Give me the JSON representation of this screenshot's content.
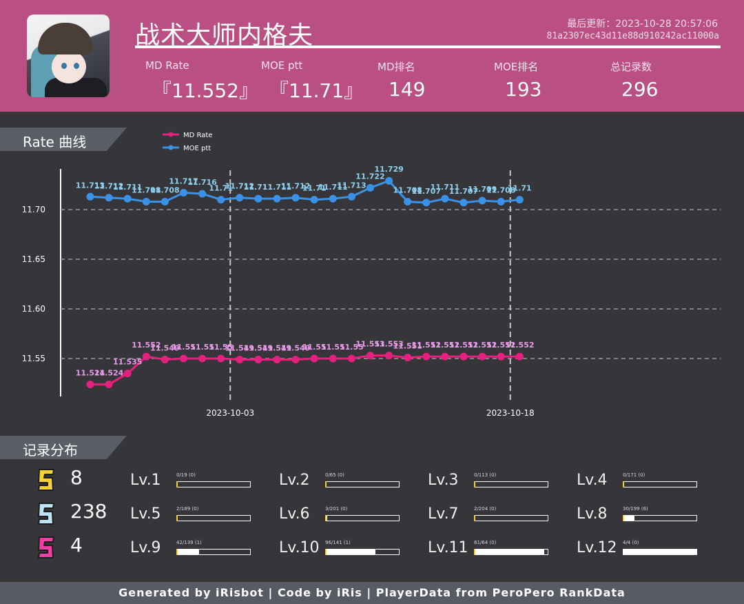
{
  "header": {
    "title": "战术大师内格夫",
    "update_time": "最后更新：2023-10-28 20:57:06",
    "user_id": "81a2307ec43d11e88d910242ac11000a",
    "stats": [
      {
        "label": "MD Rate",
        "value": "『11.552』"
      },
      {
        "label": "MOE ptt",
        "value": "『11.71』"
      },
      {
        "label": "MD排名",
        "value": "149"
      },
      {
        "label": "MOE排名",
        "value": "193"
      },
      {
        "label": "总记录数",
        "value": "296"
      }
    ]
  },
  "sections": {
    "rate": "Rate 曲线",
    "records": "记录分布"
  },
  "chart_data": {
    "type": "line",
    "ylim": [
      11.5,
      11.74
    ],
    "yticks": [
      "11.70",
      "11.65",
      "11.60",
      "11.55"
    ],
    "yticks_values": [
      11.7,
      11.65,
      11.6,
      11.55
    ],
    "x_date_labels": [
      {
        "index": 7.5,
        "label": "2023-10-03"
      },
      {
        "index": 22.5,
        "label": "2023-10-18"
      }
    ],
    "grid": true,
    "legend": "top-left",
    "series": [
      {
        "name": "MD Rate",
        "color": "#e5217f",
        "label_color": "#e79be6",
        "values": [
          11.524,
          11.524,
          11.535,
          11.552,
          11.549,
          11.55,
          11.55,
          11.55,
          11.549,
          11.549,
          11.549,
          11.549,
          11.55,
          11.55,
          11.55,
          11.553,
          11.553,
          11.551,
          11.552,
          11.552,
          11.552,
          11.552,
          11.552,
          11.552
        ],
        "labels": [
          "11.524",
          "11.524",
          "11.535",
          "11.552",
          "11.549",
          "11.55",
          "11.55",
          "11.55",
          "11.549",
          "11.549",
          "11.549",
          "11.549",
          "11.55",
          "11.55",
          "11.55",
          "11.553",
          "11.553",
          "11.551",
          "11.552",
          "11.552",
          "11.552",
          "11.552",
          "11.552",
          "11.552"
        ]
      },
      {
        "name": "MOE ptt",
        "color": "#3a92e8",
        "label_color": "#8fd0ef",
        "values": [
          11.713,
          11.712,
          11.711,
          11.708,
          11.708,
          11.717,
          11.716,
          11.71,
          11.712,
          11.711,
          11.711,
          11.712,
          11.71,
          11.711,
          11.713,
          11.722,
          11.729,
          11.708,
          11.707,
          11.711,
          11.707,
          11.709,
          11.708,
          11.71
        ],
        "labels": [
          "11.713",
          "11.712",
          "11.711",
          "11.708",
          "11.708",
          "11.717",
          "11.716",
          "11.71",
          "11.712",
          "11.711",
          "11.711",
          "11.712",
          "11.71",
          "11.711",
          "11.713",
          "11.722",
          "11.729",
          "11.708",
          "11.707",
          "11.711",
          "11.707",
          "11.709",
          "11.708",
          "11.71"
        ]
      }
    ]
  },
  "ranks": [
    {
      "icon": "gold-s-icon",
      "color": "#f6d235",
      "count": "8"
    },
    {
      "icon": "silver-s-icon",
      "color": "#bfe3f3",
      "count": "238"
    },
    {
      "icon": "pink-s-icon",
      "color": "#ee3fa4",
      "count": "4"
    }
  ],
  "levels": [
    {
      "name": "Lv.1",
      "detail": "0/19 (0)",
      "fraction": 0.0
    },
    {
      "name": "Lv.2",
      "detail": "0/65 (0)",
      "fraction": 0.0
    },
    {
      "name": "Lv.3",
      "detail": "0/113 (0)",
      "fraction": 0.0
    },
    {
      "name": "Lv.4",
      "detail": "0/171 (0)",
      "fraction": 0.0
    },
    {
      "name": "Lv.5",
      "detail": "2/189 (0)",
      "fraction": 0.011
    },
    {
      "name": "Lv.6",
      "detail": "3/201 (0)",
      "fraction": 0.015
    },
    {
      "name": "Lv.7",
      "detail": "2/204 (0)",
      "fraction": 0.01
    },
    {
      "name": "Lv.8",
      "detail": "30/199 (6)",
      "fraction": 0.151
    },
    {
      "name": "Lv.9",
      "detail": "42/139 (1)",
      "fraction": 0.302
    },
    {
      "name": "Lv.10",
      "detail": "96/141 (1)",
      "fraction": 0.681
    },
    {
      "name": "Lv.11",
      "detail": "61/64 (0)",
      "fraction": 0.953
    },
    {
      "name": "Lv.12",
      "detail": "4/4 (0)",
      "fraction": 1.0
    }
  ],
  "footer": "Generated by iRisbot  |  Code by iRis  |  PlayerData from PeroPero RankData"
}
